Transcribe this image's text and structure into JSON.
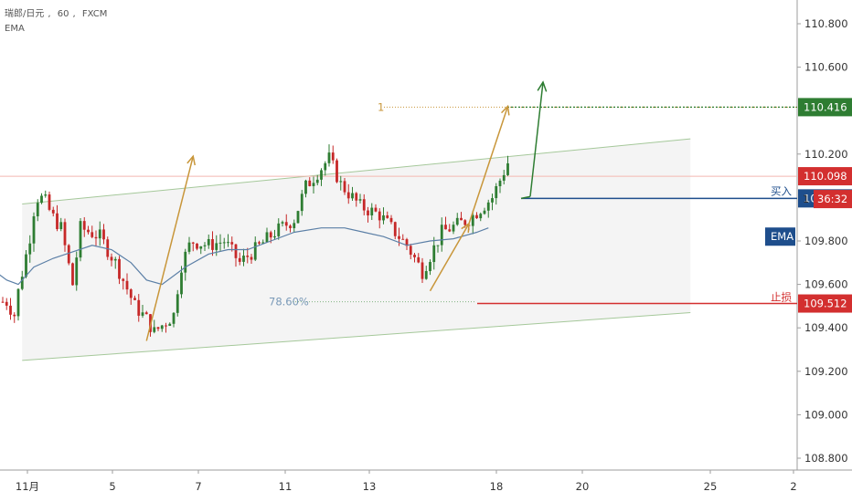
{
  "header": {
    "symbol": "瑞郎/日元",
    "interval": "60",
    "source": "FXCM",
    "indicator": "EMA"
  },
  "colors": {
    "up": "#2e7d32",
    "down": "#c62828",
    "ema": "#5b7fa6",
    "channel": "#a5c89a",
    "arrow": "#c8963a",
    "target": "#2e7d32",
    "stop": "#d32f2f",
    "entry": "#1e4e8c"
  },
  "chart_data": {
    "type": "candlestick",
    "title": "瑞郎/日元, 60, FXCM",
    "ylim": [
      108.72,
      110.98
    ],
    "y_ticks": [
      "110.800",
      "110.600",
      "110.200",
      "109.800",
      "109.600",
      "109.400",
      "109.200",
      "109.000",
      "108.800"
    ],
    "x_ticks": [
      "11月",
      "5",
      "7",
      "11",
      "13",
      "18",
      "20",
      "25",
      "2"
    ],
    "close_path": [
      [
        1.0,
        109.52
      ],
      [
        3.0,
        109.46
      ],
      [
        4.3,
        109.6
      ],
      [
        5.6,
        109.7
      ],
      [
        7.7,
        109.88
      ],
      [
        8.4,
        110.02
      ],
      [
        9.2,
        109.99
      ],
      [
        10.5,
        110.0
      ],
      [
        12.5,
        109.92
      ],
      [
        15.0,
        109.86
      ],
      [
        18.0,
        109.6
      ],
      [
        20.0,
        109.86
      ],
      [
        25.0,
        109.82
      ],
      [
        29.0,
        109.7
      ],
      [
        34.0,
        109.5
      ],
      [
        37.0,
        109.44
      ],
      [
        39.0,
        109.38
      ],
      [
        44.0,
        109.46
      ],
      [
        45.8,
        109.68
      ],
      [
        48.5,
        109.8
      ],
      [
        53.0,
        109.78
      ],
      [
        57.0,
        109.8
      ],
      [
        61.0,
        109.7
      ],
      [
        65.0,
        109.76
      ],
      [
        70.0,
        109.84
      ],
      [
        75.0,
        109.9
      ],
      [
        78.0,
        110.05
      ],
      [
        84.0,
        110.18
      ],
      [
        87.0,
        110.06
      ],
      [
        92.0,
        109.96
      ],
      [
        97.0,
        109.92
      ],
      [
        104.0,
        109.78
      ],
      [
        108.0,
        109.66
      ],
      [
        113.0,
        109.84
      ],
      [
        120.0,
        109.9
      ],
      [
        123.0,
        109.95
      ],
      [
        126.0,
        110.0
      ],
      [
        130.0,
        110.16
      ]
    ],
    "ema_path": [
      [
        -2.0,
        109.66
      ],
      [
        1.0,
        109.62
      ],
      [
        4.0,
        109.6
      ],
      [
        8.0,
        109.68
      ],
      [
        13.0,
        109.72
      ],
      [
        18.0,
        109.75
      ],
      [
        23.0,
        109.78
      ],
      [
        28.0,
        109.76
      ],
      [
        33.0,
        109.7
      ],
      [
        37.0,
        109.62
      ],
      [
        41.0,
        109.6
      ],
      [
        47.0,
        109.68
      ],
      [
        53.0,
        109.74
      ],
      [
        58.0,
        109.76
      ],
      [
        63.0,
        109.76
      ],
      [
        69.0,
        109.8
      ],
      [
        75.0,
        109.84
      ],
      [
        82.0,
        109.86
      ],
      [
        88.0,
        109.86
      ],
      [
        93.0,
        109.84
      ],
      [
        98.0,
        109.82
      ],
      [
        104.0,
        109.78
      ],
      [
        110.0,
        109.8
      ],
      [
        116.0,
        109.81
      ],
      [
        122.0,
        109.84
      ],
      [
        125.0,
        109.86
      ]
    ],
    "channel": {
      "upper": [
        [
          5.0,
          109.97
        ],
        [
          177.0,
          110.27
        ]
      ],
      "lower": [
        [
          5.0,
          109.25
        ],
        [
          177.0,
          109.47
        ]
      ]
    },
    "trend_arrows": [
      [
        [
          37.0,
          109.34
        ],
        [
          49.0,
          110.19
        ]
      ],
      [
        [
          110.0,
          109.57
        ],
        [
          120.0,
          109.88
        ]
      ],
      [
        [
          120.0,
          109.88
        ],
        [
          130.0,
          110.42
        ]
      ]
    ],
    "target_arrow": [
      [
        132.0,
        110.0
      ],
      [
        140.0,
        110.55
      ]
    ],
    "fib_level_label": "1",
    "fib_level_price": 110.416,
    "fib_618_label": "78.60%",
    "fib_618_price": 109.52,
    "price_tags": [
      {
        "price": 110.416,
        "label": "110.416",
        "bg": "#2e7d32"
      },
      {
        "price": 110.098,
        "label": "110.098",
        "bg": "#d32f2f"
      },
      {
        "price": 109.996,
        "label": "109.996",
        "bg": "#1e4e8c"
      },
      {
        "price": 109.512,
        "label": "109.512",
        "bg": "#d32f2f"
      }
    ],
    "countdown": "36:32",
    "partial_tick": "1",
    "ema_tag": {
      "price": 109.82,
      "label": "EMA"
    },
    "entry_label": "买入",
    "entry_price": 109.996,
    "stop_label": "止损",
    "stop_price": 109.512,
    "current_price": 110.098
  }
}
